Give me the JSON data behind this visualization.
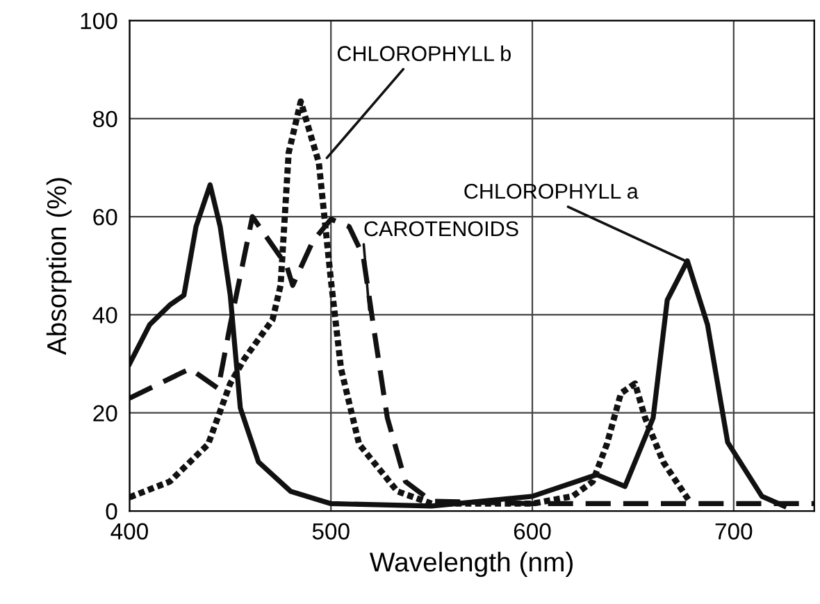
{
  "chart_data": {
    "type": "line",
    "xlabel": "Wavelength (nm)",
    "ylabel": "Absorption (%)",
    "xlim": [
      400,
      740
    ],
    "xticks": [
      400,
      500,
      600,
      700
    ],
    "ylim": [
      0,
      100
    ],
    "yticks": [
      0,
      20,
      40,
      60,
      80,
      100
    ],
    "grid": true,
    "legend": false,
    "series": [
      {
        "color": "#111111",
        "line_style": "solid",
        "x": [
          400,
          410,
          420,
          427,
          433,
          440,
          445,
          450,
          455,
          464,
          480,
          500,
          550,
          600,
          632,
          646,
          660,
          667,
          677,
          687,
          697,
          714,
          725
        ],
        "values": [
          30,
          38,
          42,
          44,
          58,
          66.5,
          58,
          44,
          21,
          10,
          4,
          1.5,
          1,
          3,
          7.4,
          5,
          19,
          43,
          51,
          38,
          14,
          3,
          1
        ]
      },
      {
        "color": "#111111",
        "line_style": "dotted",
        "x": [
          400,
          420,
          439,
          450,
          457,
          471,
          475,
          479,
          485,
          494,
          500,
          505,
          514,
          533,
          550,
          600,
          620,
          630,
          637,
          644,
          651,
          656,
          665,
          678
        ],
        "values": [
          2.8,
          6,
          13.6,
          26,
          31,
          39,
          46,
          73,
          83.5,
          71,
          47,
          29,
          13.6,
          4,
          1.5,
          1.5,
          3,
          6,
          13.6,
          24,
          26,
          19,
          10,
          2
        ]
      },
      {
        "color": "#111111",
        "line_style": "dashed",
        "x": [
          400,
          430,
          444,
          450,
          461,
          478,
          481,
          491,
          500,
          509,
          516,
          521,
          528,
          537,
          550,
          600,
          650,
          700,
          740
        ],
        "values": [
          23,
          29,
          25,
          38,
          60,
          50,
          46,
          55,
          59.5,
          58,
          52,
          38,
          19,
          6,
          2,
          1.5,
          1.5,
          1.5,
          1.5
        ]
      }
    ],
    "annotations": [
      {
        "text": "CHLOROPHYLL b",
        "x": 498,
        "y": 72
      },
      {
        "text": "CAROTENOIDS",
        "x": 519,
        "y": 41
      },
      {
        "text": "CHLOROPHYLL a",
        "x": 676,
        "y": 51
      }
    ]
  }
}
